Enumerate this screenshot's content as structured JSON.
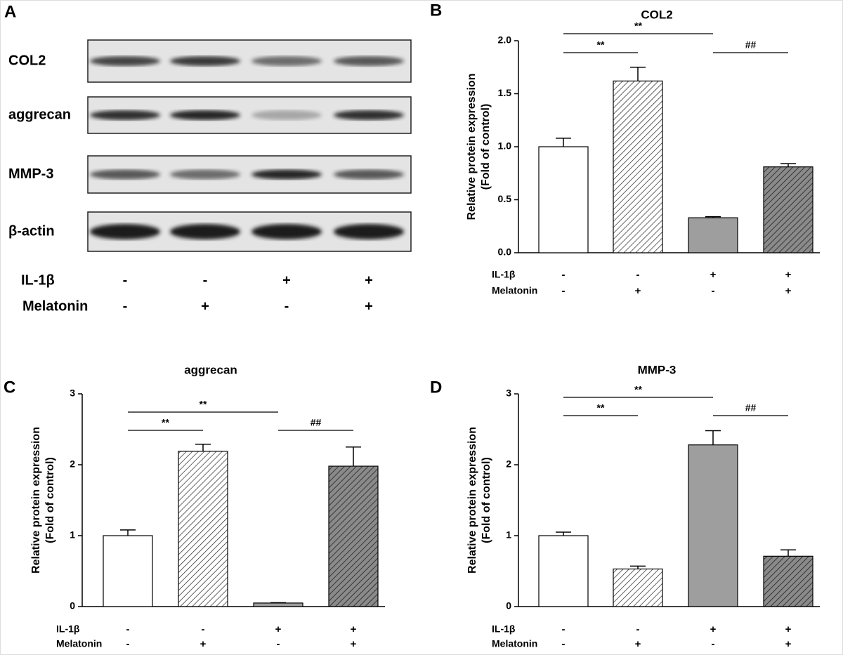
{
  "blot": {
    "panel": "A",
    "rows": [
      "COL2",
      "aggrecan",
      "MMP-3",
      "β-actin"
    ],
    "conditions": [
      {
        "name": "IL-1β",
        "signs": [
          "-",
          "-",
          "+",
          "+"
        ]
      },
      {
        "name": "Melatonin",
        "signs": [
          "-",
          "+",
          "-",
          "+"
        ]
      }
    ]
  },
  "chart_data": [
    {
      "type": "bar",
      "panel": "B",
      "title": "COL2",
      "ylabel": [
        "Relative protein expression",
        "(Fold of control)"
      ],
      "categories": [
        null,
        null,
        null,
        null
      ],
      "series": [
        {
          "values": [
            1.0,
            1.62,
            0.33,
            0.81
          ],
          "errors": [
            0.08,
            0.13,
            0.01,
            0.03
          ]
        }
      ],
      "fills": [
        "#ffffff",
        "#ffffff",
        "#9e9e9e",
        "#8a8a8a"
      ],
      "hatch": [
        false,
        true,
        false,
        true
      ],
      "ylim": [
        0,
        2
      ],
      "yticks": [
        {
          "value": 0,
          "label": "0.0"
        },
        0.5,
        {
          "value": 1,
          "label": "1.0"
        },
        1.5,
        {
          "value": 2,
          "label": "2.0"
        }
      ],
      "annotations": [
        {
          "text": "**",
          "from": 0,
          "to": 1
        },
        {
          "text": "**",
          "from": 0,
          "to": 2
        },
        {
          "text": "##",
          "from": 2,
          "to": 3
        }
      ],
      "conditions": [
        {
          "name": "IL-1β",
          "signs": [
            "-",
            "-",
            "+",
            "+"
          ]
        },
        {
          "name": "Melatonin",
          "signs": [
            "-",
            "+",
            "-",
            "+"
          ]
        }
      ]
    },
    {
      "type": "bar",
      "panel": "C",
      "title": "aggrecan",
      "ylabel": [
        "Relative protein expression",
        "(Fold of control)"
      ],
      "categories": [
        null,
        null,
        null,
        null
      ],
      "series": [
        {
          "values": [
            1.0,
            2.19,
            0.05,
            1.98
          ],
          "errors": [
            0.08,
            0.1,
            0.005,
            0.27
          ]
        }
      ],
      "fills": [
        "#ffffff",
        "#ffffff",
        "#9e9e9e",
        "#8a8a8a"
      ],
      "hatch": [
        false,
        true,
        false,
        true
      ],
      "ylim": [
        0,
        3
      ],
      "yticks": [
        0,
        1,
        2,
        3
      ],
      "annotations": [
        {
          "text": "**",
          "from": 0,
          "to": 1
        },
        {
          "text": "**",
          "from": 0,
          "to": 2
        },
        {
          "text": "##",
          "from": 2,
          "to": 3
        }
      ],
      "conditions": [
        {
          "name": "IL-1β",
          "signs": [
            "-",
            "-",
            "+",
            "+"
          ]
        },
        {
          "name": "Melatonin",
          "signs": [
            "-",
            "+",
            "-",
            "+"
          ]
        }
      ]
    },
    {
      "type": "bar",
      "panel": "D",
      "title": "MMP-3",
      "ylabel": [
        "Relative protein expression",
        "(Fold of control)"
      ],
      "categories": [
        null,
        null,
        null,
        null
      ],
      "series": [
        {
          "values": [
            1.0,
            0.53,
            2.28,
            0.71
          ],
          "errors": [
            0.05,
            0.04,
            0.2,
            0.09
          ]
        }
      ],
      "fills": [
        "#ffffff",
        "#ffffff",
        "#9e9e9e",
        "#8a8a8a"
      ],
      "hatch": [
        false,
        true,
        false,
        true
      ],
      "ylim": [
        0,
        3
      ],
      "yticks": [
        0,
        1,
        2,
        3
      ],
      "annotations": [
        {
          "text": "**",
          "from": 0,
          "to": 2
        },
        {
          "text": "##",
          "from": 2,
          "to": 3
        },
        {
          "text": "**",
          "from": 0,
          "to": 1
        }
      ],
      "conditions": [
        {
          "name": "IL-1β",
          "signs": [
            "-",
            "-",
            "+",
            "+"
          ]
        },
        {
          "name": "Melatonin",
          "signs": [
            "-",
            "+",
            "-",
            "+"
          ]
        }
      ]
    }
  ]
}
